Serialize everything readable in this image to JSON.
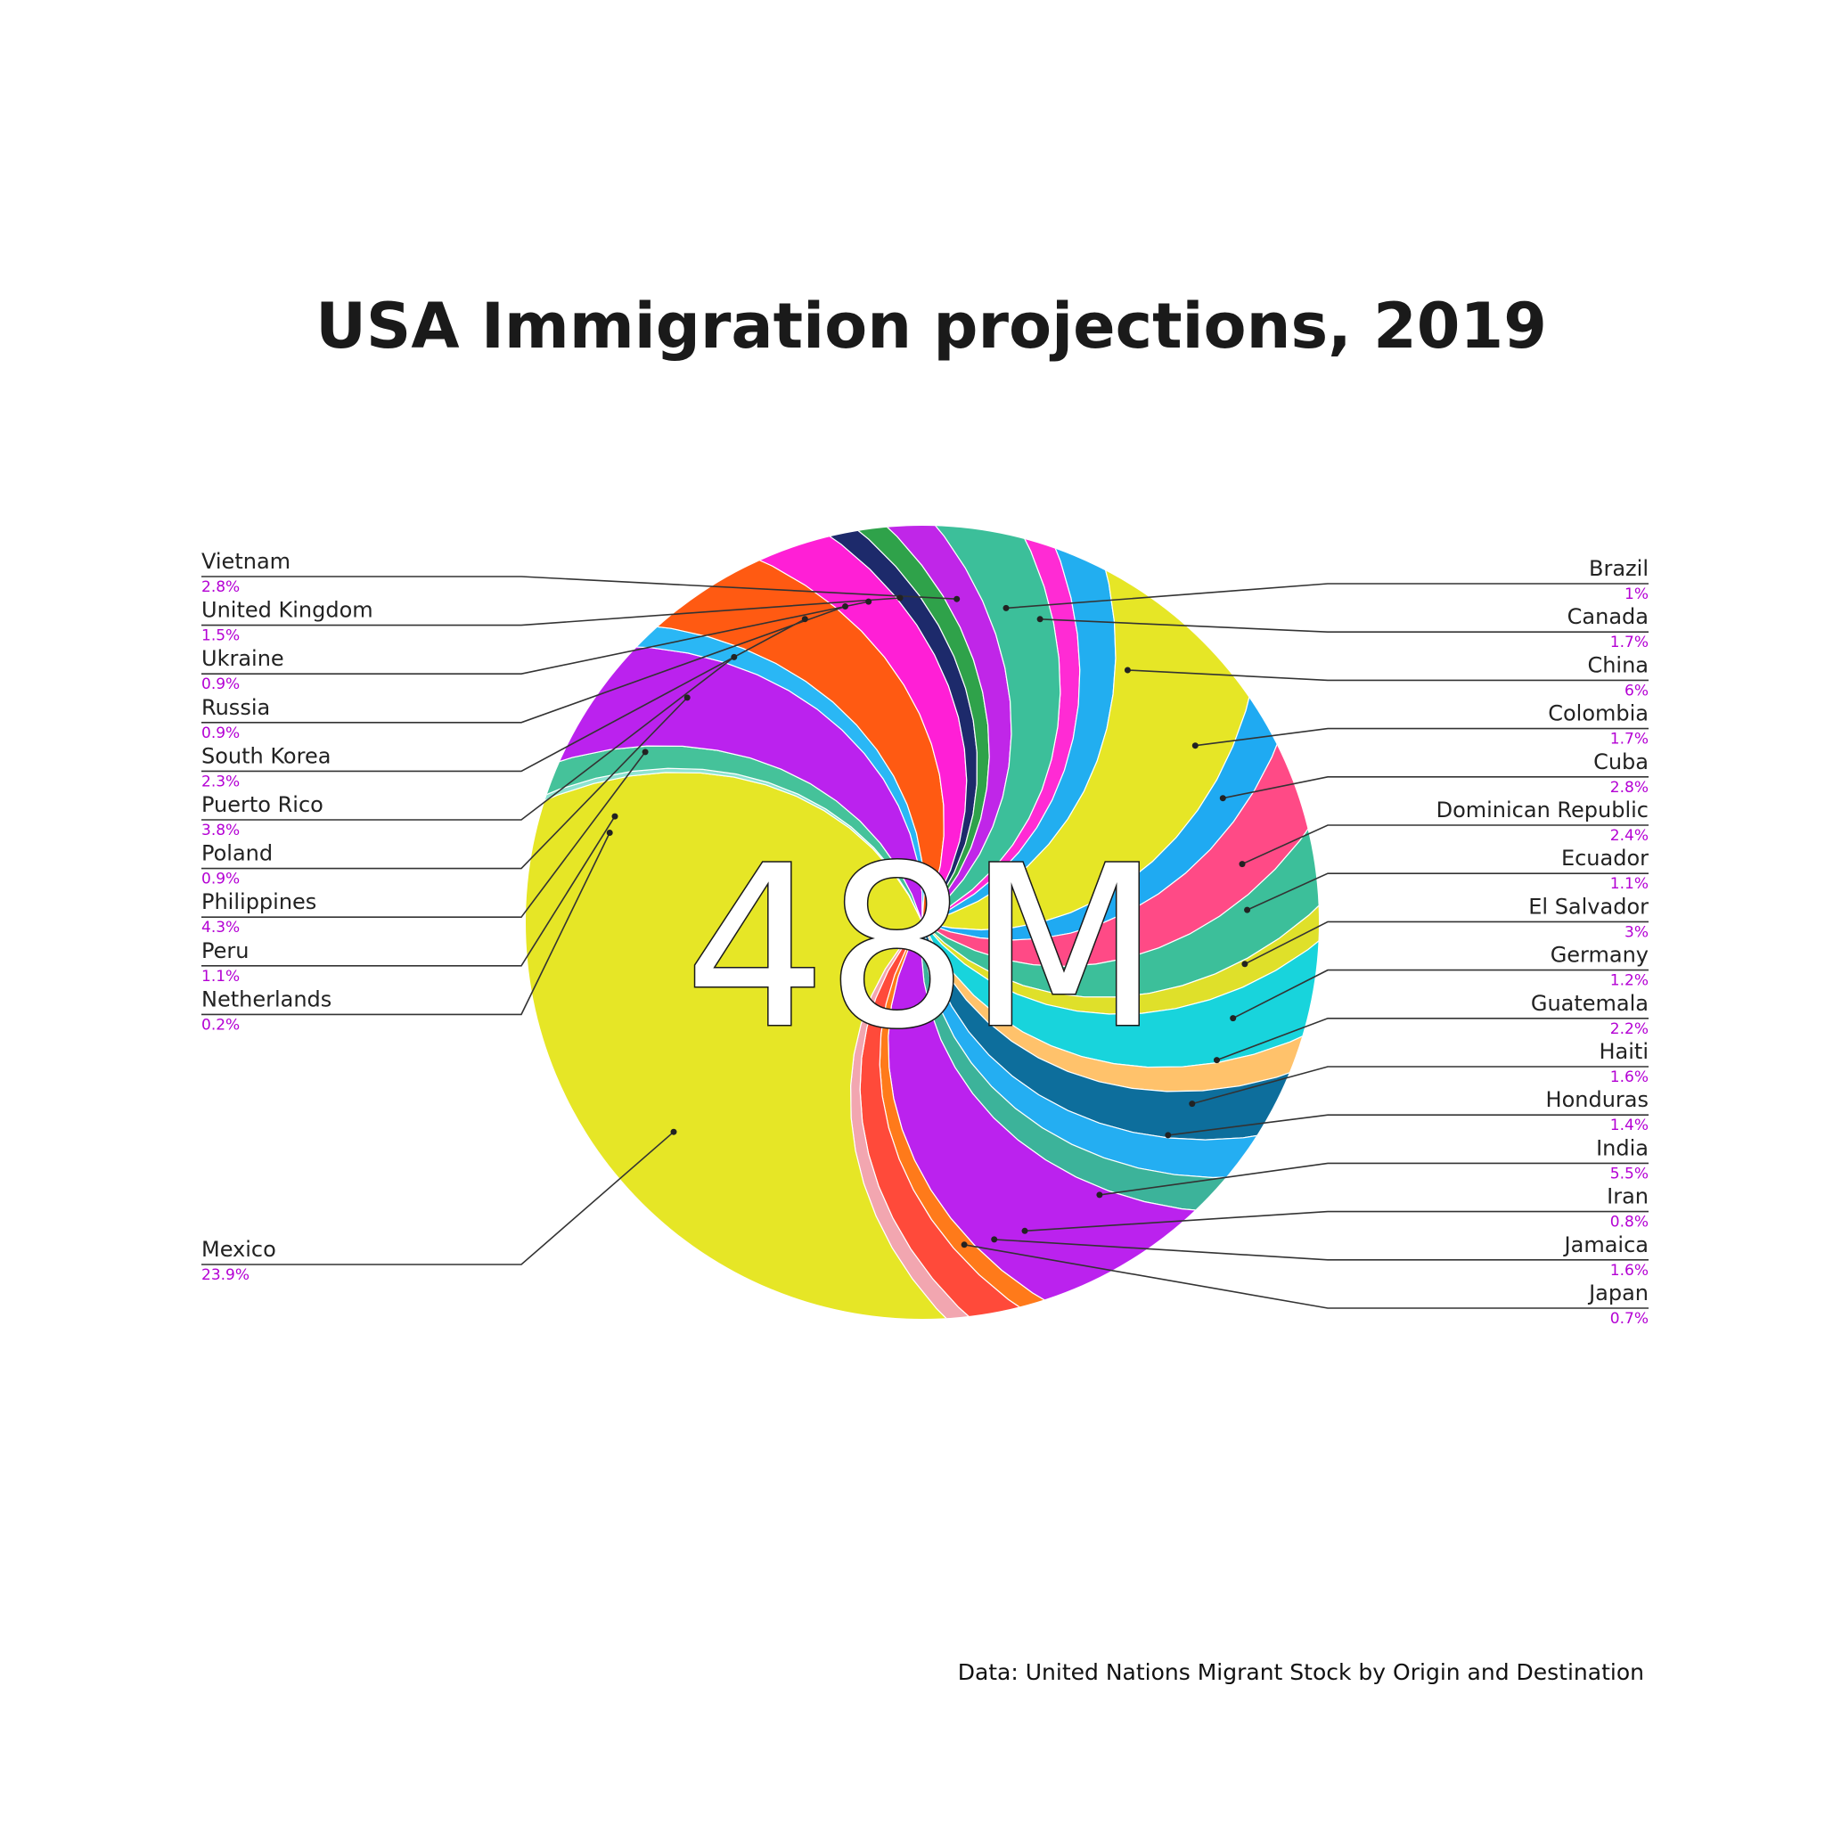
{
  "chart_data": {
    "type": "pie",
    "title": "USA Immigration projections, 2019",
    "center_label": "48M",
    "source": "Data: United Nations Migrant Stock by Origin and Destination",
    "slices": [
      {
        "label": "Vietnam",
        "value_label": "2.8%",
        "value": 2.8,
        "color": "#3cbf9a",
        "side": "left"
      },
      {
        "label": "United Kingdom",
        "value_label": "1.5%",
        "value": 1.5,
        "color": "#c026e8",
        "side": "left"
      },
      {
        "label": "Ukraine",
        "value_label": "0.9%",
        "value": 0.9,
        "color": "#2fa24a",
        "side": "left"
      },
      {
        "label": "Russia",
        "value_label": "0.9%",
        "value": 0.9,
        "color": "#1d2a6b",
        "side": "left"
      },
      {
        "label": "South Korea",
        "value_label": "2.3%",
        "value": 2.3,
        "color": "#ff1fd6",
        "side": "left"
      },
      {
        "label": "Puerto Rico",
        "value_label": "3.8%",
        "value": 3.8,
        "color": "#ff5a12",
        "side": "left"
      },
      {
        "label": "Poland",
        "value_label": "0.9%",
        "value": 0.9,
        "color": "#2ab7f5",
        "side": "left"
      },
      {
        "label": "Philippines",
        "value_label": "4.3%",
        "value": 4.3,
        "color": "#bb22ee",
        "side": "left"
      },
      {
        "label": "Peru",
        "value_label": "1.1%",
        "value": 1.1,
        "color": "#45c29a",
        "side": "left"
      },
      {
        "label": "Netherlands",
        "value_label": "0.2%",
        "value": 0.2,
        "color": "#8ee3d0",
        "side": "left"
      },
      {
        "label": "Mexico",
        "value_label": "23.9%",
        "value": 23.9,
        "color": "#e6e626",
        "side": "left"
      },
      {
        "label": "Brazil",
        "value_label": "1%",
        "value": 1,
        "color": "#ff2bd4",
        "side": "right"
      },
      {
        "label": "Canada",
        "value_label": "1.7%",
        "value": 1.7,
        "color": "#22aef0",
        "side": "right"
      },
      {
        "label": "China",
        "value_label": "6%",
        "value": 6,
        "color": "#e6e626",
        "side": "right"
      },
      {
        "label": "Colombia",
        "value_label": "1.7%",
        "value": 1.7,
        "color": "#1faaf2",
        "side": "right"
      },
      {
        "label": "Cuba",
        "value_label": "2.8%",
        "value": 2.8,
        "color": "#ff4a86",
        "side": "right"
      },
      {
        "label": "Dominican Republic",
        "value_label": "2.4%",
        "value": 2.4,
        "color": "#3cbf9a",
        "side": "right"
      },
      {
        "label": "Ecuador",
        "value_label": "1.1%",
        "value": 1.1,
        "color": "#dfe02a",
        "side": "right"
      },
      {
        "label": "El Salvador",
        "value_label": "3%",
        "value": 3,
        "color": "#18d4dc",
        "side": "right"
      },
      {
        "label": "Germany",
        "value_label": "1.2%",
        "value": 1.2,
        "color": "#ffc26b",
        "side": "right"
      },
      {
        "label": "Guatemala",
        "value_label": "2.2%",
        "value": 2.2,
        "color": "#0d6e9c",
        "side": "right"
      },
      {
        "label": "Haiti",
        "value_label": "1.6%",
        "value": 1.6,
        "color": "#24aef2",
        "side": "right"
      },
      {
        "label": "Honduras",
        "value_label": "1.4%",
        "value": 1.4,
        "color": "#3cb39a",
        "side": "right"
      },
      {
        "label": "India",
        "value_label": "5.5%",
        "value": 5.5,
        "color": "#bb22ee",
        "side": "right"
      },
      {
        "label": "Iran",
        "value_label": "0.8%",
        "value": 0.8,
        "color": "#ff7a1a",
        "side": "right"
      },
      {
        "label": "Jamaica",
        "value_label": "1.6%",
        "value": 1.6,
        "color": "#ff4a3a",
        "side": "right"
      },
      {
        "label": "Japan",
        "value_label": "0.7%",
        "value": 0.7,
        "color": "#f2a6b0",
        "side": "right"
      }
    ]
  }
}
